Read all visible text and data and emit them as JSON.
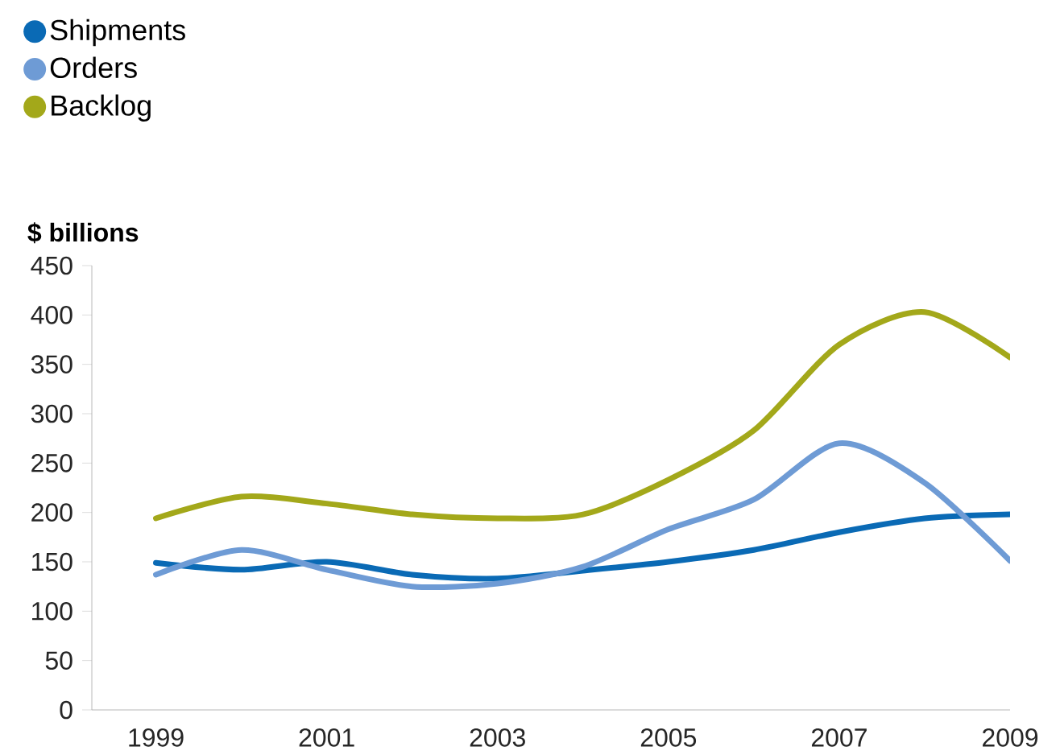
{
  "chart_data": {
    "type": "line",
    "ylabel": "$ billions",
    "x": [
      1999,
      2000,
      2001,
      2002,
      2003,
      2004,
      2005,
      2006,
      2007,
      2008,
      2009
    ],
    "series": [
      {
        "name": "Shipments",
        "color": "#0a6ab5",
        "values": [
          149,
          142,
          150,
          137,
          133,
          141,
          150,
          162,
          180,
          194,
          198
        ]
      },
      {
        "name": "Orders",
        "color": "#6e9bd5",
        "values": [
          137,
          162,
          142,
          125,
          128,
          145,
          183,
          213,
          270,
          230,
          151
        ]
      },
      {
        "name": "Backlog",
        "color": "#a3a81a",
        "values": [
          194,
          216,
          209,
          198,
          194,
          198,
          233,
          283,
          370,
          403,
          357
        ]
      }
    ],
    "xlim": [
      1998.25,
      2009
    ],
    "ylim": [
      0,
      450
    ],
    "xticks": [
      1999,
      2001,
      2003,
      2005,
      2007,
      2009
    ],
    "yticks": [
      0,
      50,
      100,
      150,
      200,
      250,
      300,
      350,
      400,
      450
    ],
    "legend": "top left",
    "marker": "none",
    "line_style": "solid"
  }
}
